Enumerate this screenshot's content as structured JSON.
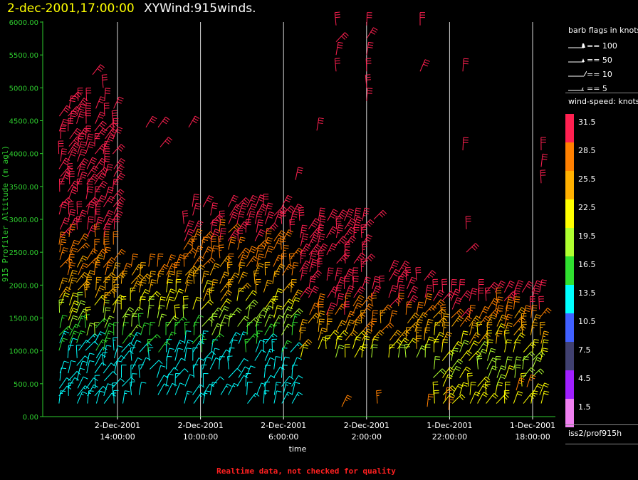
{
  "header": {
    "datetime": "2-dec-2001,17:00:00",
    "title": "XYWind:915winds."
  },
  "legend": {
    "flags_title": "barb flags in knots",
    "flags": [
      {
        "label": "== 100",
        "type": "flag100"
      },
      {
        "label": "== 50",
        "type": "flag50"
      },
      {
        "label": "== 10",
        "type": "barb10"
      },
      {
        "label": "== 5",
        "type": "barb5"
      }
    ],
    "speed_title": "wind-speed: knots",
    "speeds": [
      {
        "label": "31.5",
        "color": "#ff2050"
      },
      {
        "label": "28.5",
        "color": "#ff8000"
      },
      {
        "label": "25.5",
        "color": "#ffb000"
      },
      {
        "label": "22.5",
        "color": "#ffff00"
      },
      {
        "label": "19.5",
        "color": "#b0ff30"
      },
      {
        "label": "16.5",
        "color": "#30e030"
      },
      {
        "label": "13.5",
        "color": "#00ffff"
      },
      {
        "label": "10.5",
        "color": "#4060ff"
      },
      {
        "label": "7.5",
        "color": "#404070"
      },
      {
        "label": "4.5",
        "color": "#a020ff"
      },
      {
        "label": "1.5",
        "color": "#f080f0"
      }
    ],
    "source": "iss2/prof915h"
  },
  "footer_note": "Realtime data, not checked for quality",
  "chart_data": {
    "type": "wind-barb time-height",
    "ylabel": "915 Profiler Altitude (m agl)",
    "xlabel": "time",
    "ylim": [
      0,
      6000
    ],
    "yticks": [
      "0.00",
      "500.00",
      "1000.00",
      "1500.00",
      "2000.00",
      "2500.00",
      "3000.00",
      "3500.00",
      "4000.00",
      "4500.00",
      "5000.00",
      "5500.00",
      "6000.00"
    ],
    "x_time_reversed": true,
    "xticks": [
      {
        "date": "2-Dec-2001",
        "time": "14:00:00",
        "hours_before_end": 3
      },
      {
        "date": "2-Dec-2001",
        "time": "10:00:00",
        "hours_before_end": 7
      },
      {
        "date": "2-Dec-2001",
        "time": "6:00:00",
        "hours_before_end": 11
      },
      {
        "date": "2-Dec-2001",
        "time": "2:00:00",
        "hours_before_end": 15
      },
      {
        "date": "1-Dec-2001",
        "time": "22:00:00",
        "hours_before_end": 19
      },
      {
        "date": "1-Dec-2001",
        "time": "18:00:00",
        "hours_before_end": 23
      }
    ],
    "grid": "vertical lines at time ticks",
    "wind_speed_bins_knots": [
      1.5,
      4.5,
      7.5,
      10.5,
      13.5,
      16.5,
      19.5,
      22.5,
      25.5,
      28.5,
      31.5
    ],
    "speed_by_height_knots": [
      {
        "height_m": 300,
        "speed": 14
      },
      {
        "height_m": 800,
        "speed": 12
      },
      {
        "height_m": 1300,
        "speed": 18
      },
      {
        "height_m": 1800,
        "speed": 24
      },
      {
        "height_m": 2300,
        "speed": 28
      },
      {
        "height_m": 3000,
        "speed": 31.5
      }
    ]
  }
}
